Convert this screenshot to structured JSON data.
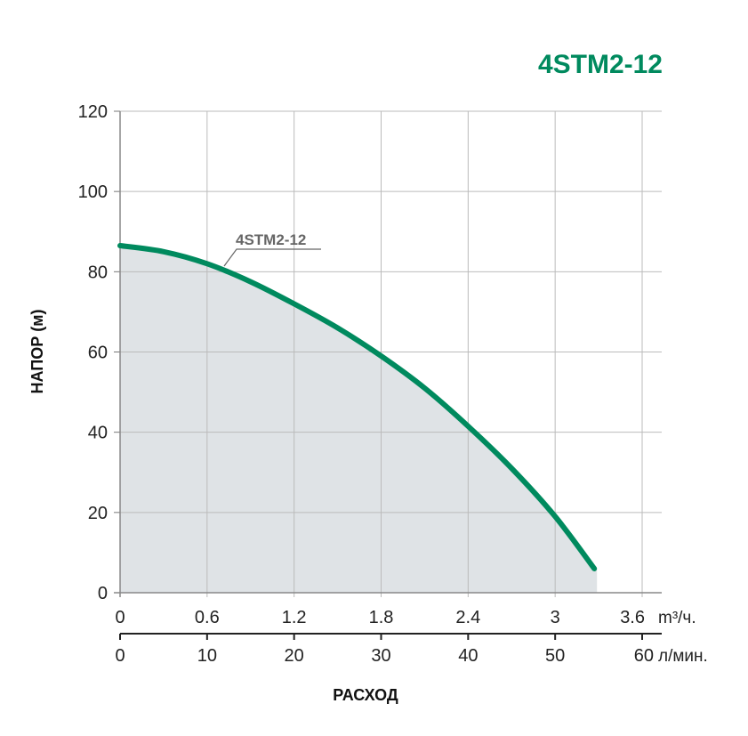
{
  "chart_data": {
    "type": "area",
    "title": "4STM2-12",
    "ylabel": "НАПОР (м)",
    "xlabel": "РАСХОД",
    "ylim": [
      0,
      120
    ],
    "y_ticks": [
      "0",
      "20",
      "40",
      "60",
      "80",
      "100",
      "120"
    ],
    "x_primary": {
      "unit": "m³/ч.",
      "ticks": [
        "0",
        "0.6",
        "1.2",
        "1.8",
        "2.4",
        "3",
        "3.6"
      ],
      "range": [
        0,
        3.6
      ]
    },
    "x_secondary": {
      "unit": "л/мин.",
      "ticks": [
        "0",
        "10",
        "20",
        "30",
        "40",
        "50",
        "60"
      ],
      "range": [
        0,
        60
      ]
    },
    "grid": true,
    "series": [
      {
        "name": "4STM2-12",
        "x": [
          0,
          0.3,
          0.6,
          0.9,
          1.2,
          1.5,
          1.8,
          2.1,
          2.4,
          2.7,
          3.0,
          3.27
        ],
        "values": [
          86.5,
          85,
          82,
          77.5,
          72,
          66,
          59,
          51,
          41.5,
          31,
          19,
          6
        ]
      }
    ],
    "colors": {
      "curve": "#008a5e",
      "fill": "#dfe3e6",
      "grid": "#bbbbbb",
      "title": "#008a5e",
      "label": "#666666"
    }
  }
}
